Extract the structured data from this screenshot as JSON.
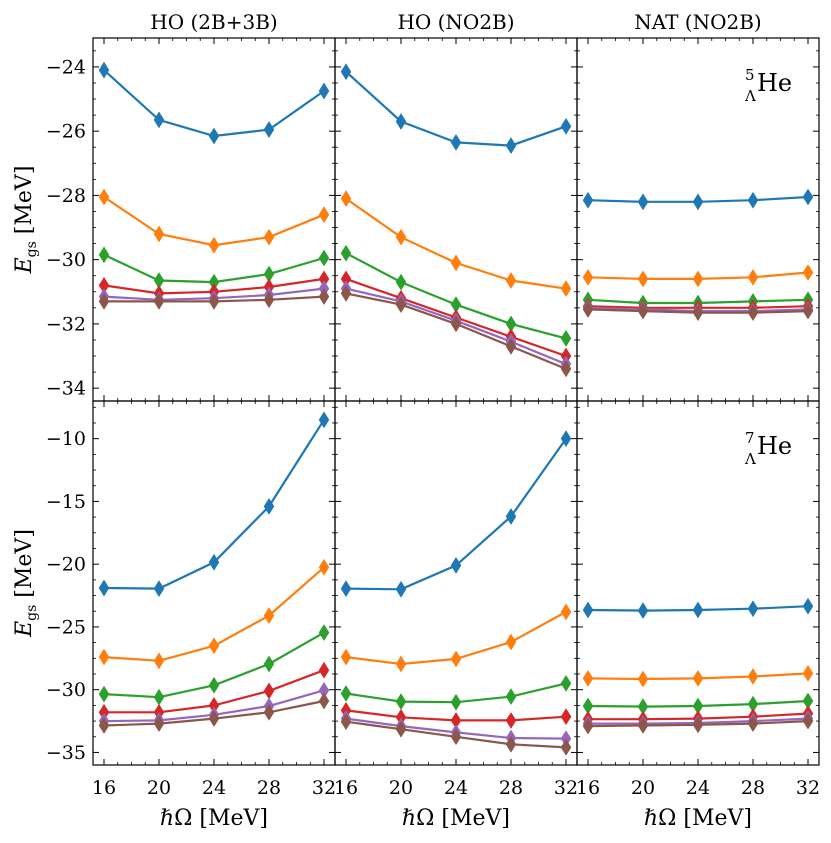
{
  "chart_data": {
    "type": "line",
    "layout": "2x3 grid, shared x and y axes per row",
    "columns": [
      "HO (2B+3B)",
      "HO (NO2B)",
      "NAT (NO2B)"
    ],
    "xlabel": "ℏΩ [MeV]",
    "x": [
      16,
      20,
      24,
      28,
      32
    ],
    "xticks": [
      "16",
      "20",
      "24",
      "28",
      "32"
    ],
    "marker": "diamond",
    "series_colors": [
      "#1f77b4",
      "#ff7f0e",
      "#2ca02c",
      "#d62728",
      "#9467bd",
      "#8c564b"
    ],
    "rows": [
      {
        "nucleus": {
          "mass": "5",
          "sub": "Λ",
          "symbol": "He"
        },
        "ylabel": {
          "main": "E",
          "sub": "gs",
          "unit": "[MeV]"
        },
        "ylim": [
          -34.4,
          -23.1
        ],
        "yticks": [
          -24,
          -26,
          -28,
          -30,
          -32,
          -34
        ],
        "ytick_labels": [
          "−24",
          "−26",
          "−28",
          "−30",
          "−32",
          "−34"
        ],
        "panels": [
          {
            "column": "HO (2B+3B)",
            "series": [
              {
                "values": [
                  -24.1,
                  -25.65,
                  -26.15,
                  -25.95,
                  -24.75
                ]
              },
              {
                "values": [
                  -28.05,
                  -29.2,
                  -29.55,
                  -29.3,
                  -28.6
                ]
              },
              {
                "values": [
                  -29.85,
                  -30.65,
                  -30.7,
                  -30.45,
                  -29.95
                ]
              },
              {
                "values": [
                  -30.8,
                  -31.05,
                  -31.0,
                  -30.85,
                  -30.6
                ]
              },
              {
                "values": [
                  -31.15,
                  -31.25,
                  -31.2,
                  -31.1,
                  -30.9
                ]
              },
              {
                "values": [
                  -31.3,
                  -31.3,
                  -31.3,
                  -31.25,
                  -31.15
                ]
              }
            ]
          },
          {
            "column": "HO (NO2B)",
            "series": [
              {
                "values": [
                  -24.15,
                  -25.7,
                  -26.35,
                  -26.45,
                  -25.85
                ]
              },
              {
                "values": [
                  -28.1,
                  -29.3,
                  -30.1,
                  -30.65,
                  -30.9
                ]
              },
              {
                "values": [
                  -29.8,
                  -30.7,
                  -31.4,
                  -32.0,
                  -32.45
                ]
              },
              {
                "values": [
                  -30.6,
                  -31.2,
                  -31.8,
                  -32.4,
                  -33.0
                ]
              },
              {
                "values": [
                  -30.9,
                  -31.3,
                  -31.9,
                  -32.55,
                  -33.25
                ]
              },
              {
                "values": [
                  -31.05,
                  -31.4,
                  -32.0,
                  -32.7,
                  -33.4
                ]
              }
            ]
          },
          {
            "column": "NAT (NO2B)",
            "series": [
              {
                "values": [
                  -28.15,
                  -28.2,
                  -28.2,
                  -28.15,
                  -28.05
                ]
              },
              {
                "values": [
                  -30.55,
                  -30.6,
                  -30.6,
                  -30.55,
                  -30.4
                ]
              },
              {
                "values": [
                  -31.25,
                  -31.35,
                  -31.35,
                  -31.3,
                  -31.25
                ]
              },
              {
                "values": [
                  -31.45,
                  -31.5,
                  -31.5,
                  -31.5,
                  -31.45
                ]
              },
              {
                "values": [
                  -31.5,
                  -31.55,
                  -31.6,
                  -31.6,
                  -31.55
                ]
              },
              {
                "values": [
                  -31.55,
                  -31.6,
                  -31.65,
                  -31.65,
                  -31.6
                ]
              }
            ]
          }
        ]
      },
      {
        "nucleus": {
          "mass": "7",
          "sub": "Λ",
          "symbol": "He"
        },
        "ylabel": {
          "main": "E",
          "sub": "gs",
          "unit": "[MeV]"
        },
        "ylim": [
          -36.0,
          -7.0
        ],
        "yticks": [
          -10,
          -15,
          -20,
          -25,
          -30,
          -35
        ],
        "ytick_labels": [
          "−10",
          "−15",
          "−20",
          "−25",
          "−30",
          "−35"
        ],
        "panels": [
          {
            "column": "HO (2B+3B)",
            "series": [
              {
                "values": [
                  -21.9,
                  -21.95,
                  -19.85,
                  -15.4,
                  -8.5
                ]
              },
              {
                "values": [
                  -27.4,
                  -27.7,
                  -26.5,
                  -24.1,
                  -20.25
                ]
              },
              {
                "values": [
                  -30.35,
                  -30.6,
                  -29.65,
                  -27.95,
                  -25.45
                ]
              },
              {
                "values": [
                  -31.8,
                  -31.8,
                  -31.25,
                  -30.1,
                  -28.45
                ]
              },
              {
                "values": [
                  -32.5,
                  -32.45,
                  -32.0,
                  -31.3,
                  -30.05
                ]
              },
              {
                "values": [
                  -32.85,
                  -32.7,
                  -32.3,
                  -31.8,
                  -30.9
                ]
              }
            ]
          },
          {
            "column": "HO (NO2B)",
            "series": [
              {
                "values": [
                  -21.95,
                  -22.0,
                  -20.1,
                  -16.2,
                  -10.0
                ]
              },
              {
                "values": [
                  -27.4,
                  -27.95,
                  -27.55,
                  -26.2,
                  -23.8
                ]
              },
              {
                "values": [
                  -30.3,
                  -30.95,
                  -31.0,
                  -30.55,
                  -29.5
                ]
              },
              {
                "values": [
                  -31.65,
                  -32.2,
                  -32.45,
                  -32.45,
                  -32.15
                ]
              },
              {
                "values": [
                  -32.3,
                  -32.9,
                  -33.4,
                  -33.85,
                  -33.9
                ]
              },
              {
                "values": [
                  -32.55,
                  -33.15,
                  -33.75,
                  -34.35,
                  -34.6
                ]
              }
            ]
          },
          {
            "column": "NAT (NO2B)",
            "series": [
              {
                "values": [
                  -23.65,
                  -23.7,
                  -23.65,
                  -23.55,
                  -23.35
                ]
              },
              {
                "values": [
                  -29.1,
                  -29.15,
                  -29.1,
                  -28.95,
                  -28.7
                ]
              },
              {
                "values": [
                  -31.3,
                  -31.35,
                  -31.3,
                  -31.15,
                  -30.9
                ]
              },
              {
                "values": [
                  -32.35,
                  -32.35,
                  -32.3,
                  -32.15,
                  -31.9
                ]
              },
              {
                "values": [
                  -32.7,
                  -32.7,
                  -32.65,
                  -32.5,
                  -32.3
                ]
              },
              {
                "values": [
                  -32.9,
                  -32.85,
                  -32.8,
                  -32.7,
                  -32.5
                ]
              }
            ]
          }
        ]
      }
    ]
  }
}
